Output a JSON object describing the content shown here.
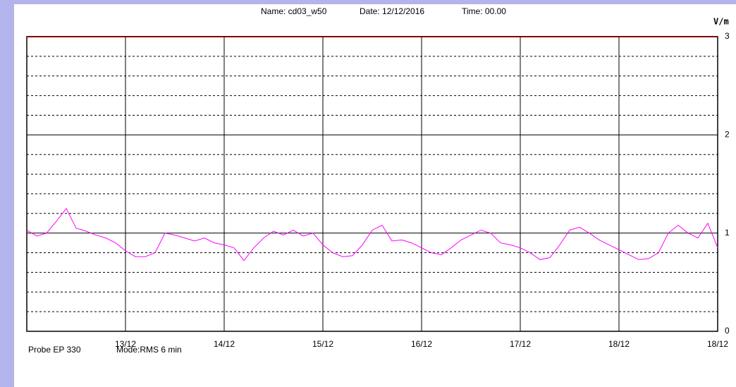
{
  "chart_data": {
    "type": "line",
    "header": {
      "name": "Name: cd03_w50",
      "date": "Date: 12/12/2016",
      "time": "Time: 00.00"
    },
    "y_unit": "V/m",
    "footer": {
      "probe": "Probe EP 330",
      "mode": "Mode:RMS  6 min"
    },
    "xlim": [
      0,
      7
    ],
    "xticks": [
      {
        "value": 1,
        "label": "13/12"
      },
      {
        "value": 2,
        "label": "14/12"
      },
      {
        "value": 3,
        "label": "15/12"
      },
      {
        "value": 4,
        "label": "16/12"
      },
      {
        "value": 5,
        "label": "17/12"
      },
      {
        "value": 6,
        "label": "18/12"
      },
      {
        "value": 7,
        "label": "18/12"
      }
    ],
    "ylim": [
      0,
      3
    ],
    "yticks": [
      0,
      1,
      2,
      3
    ],
    "yminor": [
      0.2,
      0.4,
      0.6,
      0.8,
      1.2,
      1.4,
      1.6,
      1.8,
      2.2,
      2.4,
      2.6,
      2.8
    ],
    "grid": true,
    "series": [
      {
        "name": null,
        "color": "#ff00ff",
        "x": [
          0,
          0.1,
          0.2,
          0.3,
          0.4,
          0.5,
          0.6,
          0.7,
          0.8,
          0.9,
          1.0,
          1.1,
          1.2,
          1.3,
          1.4,
          1.5,
          1.6,
          1.7,
          1.8,
          1.9,
          2.0,
          2.1,
          2.2,
          2.3,
          2.4,
          2.5,
          2.6,
          2.7,
          2.8,
          2.9,
          3.0,
          3.1,
          3.2,
          3.3,
          3.4,
          3.5,
          3.6,
          3.7,
          3.8,
          3.9,
          4.0,
          4.1,
          4.2,
          4.3,
          4.4,
          4.5,
          4.6,
          4.7,
          4.8,
          4.9,
          5.0,
          5.1,
          5.2,
          5.3,
          5.4,
          5.5,
          5.6,
          5.7,
          5.8,
          5.9,
          6.0,
          6.1,
          6.2,
          6.3,
          6.4,
          6.5,
          6.6,
          6.7,
          6.8,
          6.9,
          7.0
        ],
        "values": [
          1.03,
          0.97,
          1.0,
          1.12,
          1.25,
          1.05,
          1.02,
          0.98,
          0.95,
          0.9,
          0.82,
          0.76,
          0.76,
          0.8,
          1.0,
          0.98,
          0.95,
          0.92,
          0.95,
          0.9,
          0.88,
          0.85,
          0.72,
          0.85,
          0.95,
          1.02,
          0.98,
          1.03,
          0.97,
          1.0,
          0.88,
          0.8,
          0.76,
          0.77,
          0.88,
          1.03,
          1.08,
          0.92,
          0.93,
          0.9,
          0.85,
          0.8,
          0.78,
          0.85,
          0.93,
          0.98,
          1.03,
          1.0,
          0.9,
          0.88,
          0.85,
          0.8,
          0.73,
          0.75,
          0.88,
          1.03,
          1.06,
          1.0,
          0.93,
          0.88,
          0.83,
          0.78,
          0.73,
          0.74,
          0.8,
          1.0,
          1.08,
          1.0,
          0.95,
          1.1,
          0.85
        ]
      }
    ]
  }
}
